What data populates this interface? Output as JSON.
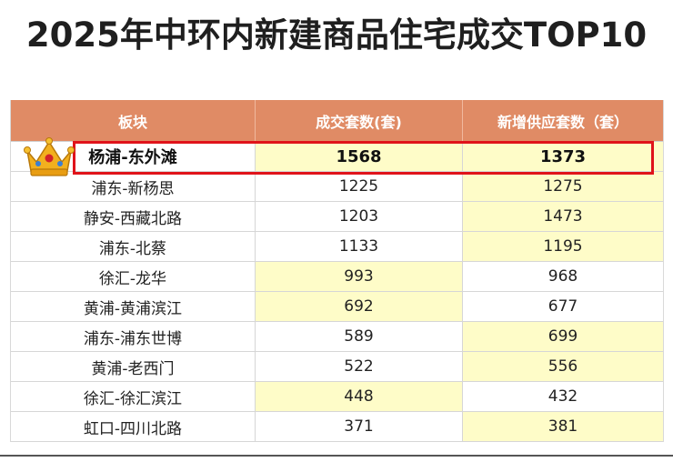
{
  "title": "2025年中环内新建商品住宅成交TOP10",
  "colors": {
    "header_bg": "#e08b65",
    "highlight_cell": "#fefcc8",
    "highlight_box": "#e0131a",
    "crown": "#f2b01e"
  },
  "icons": {
    "top_rank": "crown-icon"
  },
  "chart_data": {
    "type": "table",
    "columns": [
      "板块",
      "成交套数(套)",
      "新增供应套数（套）"
    ],
    "rows": [
      {
        "plate": "杨浦-东外滩",
        "deals": "1568",
        "new_supply": "1373"
      },
      {
        "plate": "浦东-新杨思",
        "deals": "1225",
        "new_supply": "1275"
      },
      {
        "plate": "静安-西藏北路",
        "deals": "1203",
        "new_supply": "1473"
      },
      {
        "plate": "浦东-北蔡",
        "deals": "1133",
        "new_supply": "1195"
      },
      {
        "plate": "徐汇-龙华",
        "deals": "993",
        "new_supply": "968"
      },
      {
        "plate": "黄浦-黄浦滨江",
        "deals": "692",
        "new_supply": "677"
      },
      {
        "plate": "浦东-浦东世博",
        "deals": "589",
        "new_supply": "699"
      },
      {
        "plate": "黄浦-老西门",
        "deals": "522",
        "new_supply": "556"
      },
      {
        "plate": "徐汇-徐汇滨江",
        "deals": "448",
        "new_supply": "432"
      },
      {
        "plate": "虹口-四川北路",
        "deals": "371",
        "new_supply": "381"
      }
    ]
  }
}
